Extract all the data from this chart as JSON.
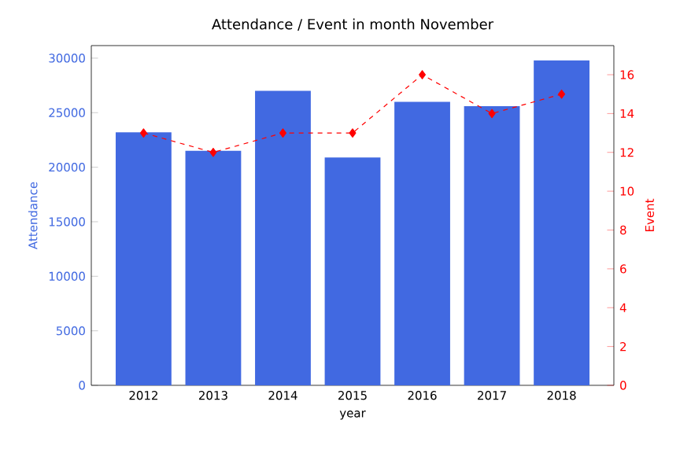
{
  "chart_data": {
    "type": "bar",
    "title": "Attendance / Event in month November",
    "xlabel": "year",
    "ylabel": "Attendance",
    "y2label": "Event",
    "categories": [
      "2012",
      "2013",
      "2014",
      "2015",
      "2016",
      "2017",
      "2018"
    ],
    "series": [
      {
        "color": "#4169e1",
        "values": [
          23200,
          21500,
          27000,
          20900,
          26000,
          25600,
          29800
        ]
      },
      {
        "type": "line",
        "axis": "y2",
        "color": "#ff0000",
        "values": [
          13,
          12,
          13,
          13,
          16,
          14,
          15
        ]
      }
    ],
    "marker": "diamond",
    "line_style": "dashed",
    "ylim": [
      0,
      31150
    ],
    "yticks": [
      0,
      5000,
      10000,
      15000,
      20000,
      25000,
      30000
    ],
    "y2lim": [
      0,
      17.5
    ],
    "y2ticks": [
      0,
      2,
      4,
      6,
      8,
      10,
      12,
      14,
      16
    ]
  }
}
